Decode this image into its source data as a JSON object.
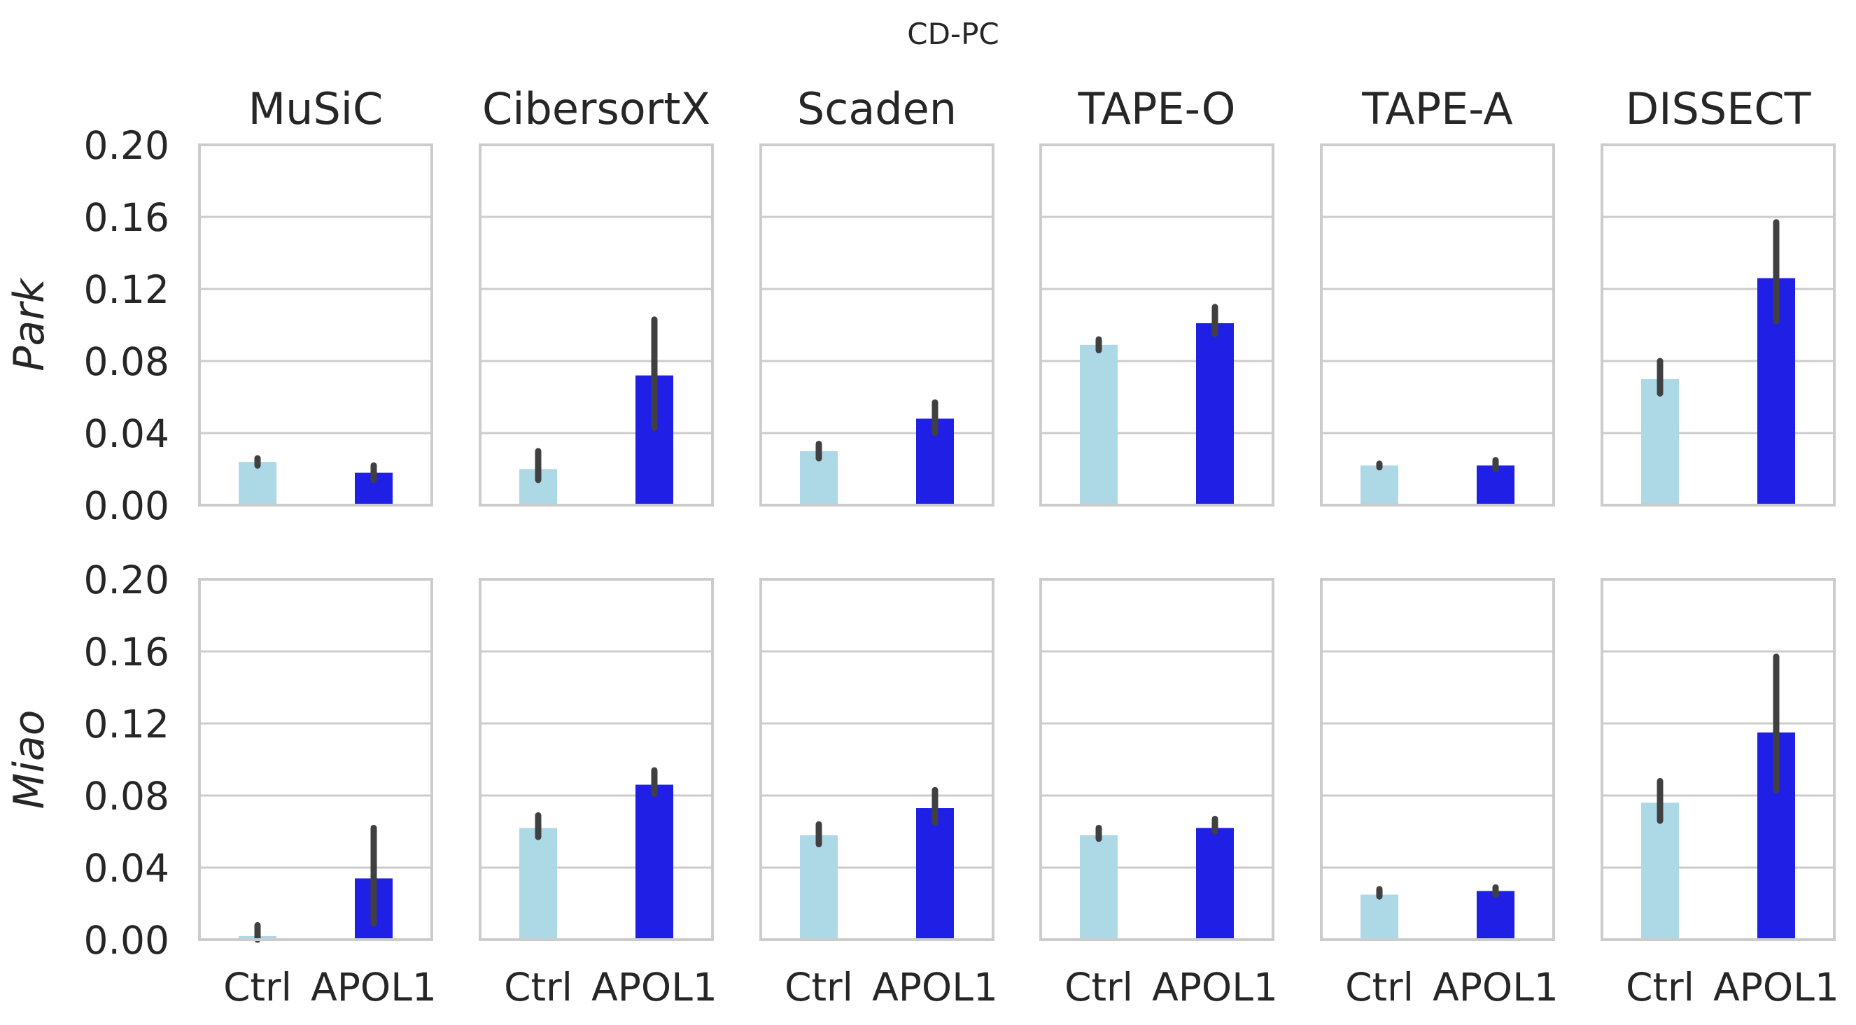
{
  "figure": {
    "suptitle": "CD-PC"
  },
  "colors": {
    "ctrl": "#add8e6",
    "apol1": "#1f1fe6",
    "errorbar": "#404040",
    "grid": "#cccccc",
    "frame": "#cccccc"
  },
  "chart_data": {
    "type": "bar",
    "grid": true,
    "sharey": true,
    "ylim": [
      0,
      0.2
    ],
    "yticks": [
      "0.00",
      "0.04",
      "0.08",
      "0.12",
      "0.16",
      "0.20"
    ],
    "categories": [
      "Ctrl",
      "APOL1"
    ],
    "columns": [
      "MuSiC",
      "CibersortX",
      "Scaden",
      "TAPE-O",
      "TAPE-A",
      "DISSECT"
    ],
    "rows": [
      {
        "label": "Park",
        "panels": [
          {
            "method": "MuSiC",
            "values": [
              0.024,
              0.018
            ],
            "err_low": [
              0.022,
              0.014
            ],
            "err_high": [
              0.026,
              0.022
            ]
          },
          {
            "method": "CibersortX",
            "values": [
              0.02,
              0.072
            ],
            "err_low": [
              0.014,
              0.043
            ],
            "err_high": [
              0.03,
              0.103
            ]
          },
          {
            "method": "Scaden",
            "values": [
              0.03,
              0.048
            ],
            "err_low": [
              0.026,
              0.04
            ],
            "err_high": [
              0.034,
              0.057
            ]
          },
          {
            "method": "TAPE-O",
            "values": [
              0.089,
              0.101
            ],
            "err_low": [
              0.086,
              0.095
            ],
            "err_high": [
              0.092,
              0.11
            ]
          },
          {
            "method": "TAPE-A",
            "values": [
              0.022,
              0.022
            ],
            "err_low": [
              0.021,
              0.02
            ],
            "err_high": [
              0.023,
              0.025
            ]
          },
          {
            "method": "DISSECT",
            "values": [
              0.07,
              0.126
            ],
            "err_low": [
              0.062,
              0.102
            ],
            "err_high": [
              0.08,
              0.157
            ]
          }
        ]
      },
      {
        "label": "Miao",
        "panels": [
          {
            "method": "MuSiC",
            "values": [
              0.002,
              0.034
            ],
            "err_low": [
              0.0,
              0.009
            ],
            "err_high": [
              0.008,
              0.062
            ]
          },
          {
            "method": "CibersortX",
            "values": [
              0.062,
              0.086
            ],
            "err_low": [
              0.057,
              0.081
            ],
            "err_high": [
              0.069,
              0.094
            ]
          },
          {
            "method": "Scaden",
            "values": [
              0.058,
              0.073
            ],
            "err_low": [
              0.053,
              0.065
            ],
            "err_high": [
              0.064,
              0.083
            ]
          },
          {
            "method": "TAPE-O",
            "values": [
              0.058,
              0.062
            ],
            "err_low": [
              0.056,
              0.06
            ],
            "err_high": [
              0.062,
              0.067
            ]
          },
          {
            "method": "TAPE-A",
            "values": [
              0.025,
              0.027
            ],
            "err_low": [
              0.024,
              0.025
            ],
            "err_high": [
              0.028,
              0.029
            ]
          },
          {
            "method": "DISSECT",
            "values": [
              0.076,
              0.115
            ],
            "err_low": [
              0.066,
              0.083
            ],
            "err_high": [
              0.088,
              0.157
            ]
          }
        ]
      }
    ]
  }
}
